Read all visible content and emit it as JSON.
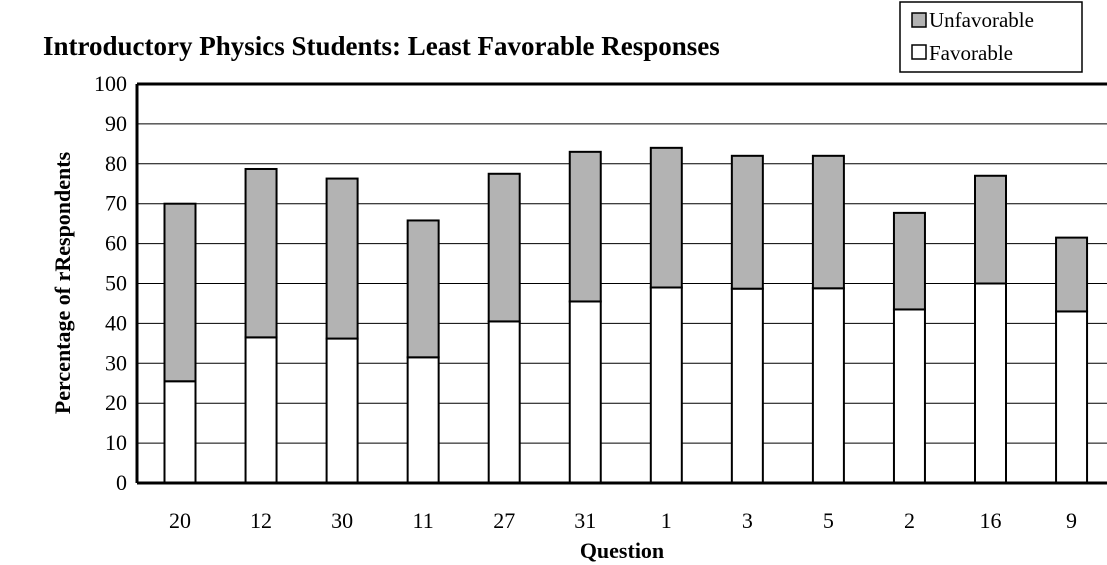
{
  "chart_data": {
    "type": "bar",
    "stacked": true,
    "title": "Introductory Physics Students: Least Favorable Responses",
    "xlabel": "Question",
    "ylabel": "Percentage of rRespondents",
    "ylim": [
      0,
      100
    ],
    "ytick_step": 10,
    "grid": true,
    "legend_position": "top-right",
    "categories": [
      "20",
      "12",
      "30",
      "11",
      "27",
      "31",
      "1",
      "3",
      "5",
      "2",
      "16",
      "9"
    ],
    "series": [
      {
        "name": "Favorable",
        "color": "#ffffff",
        "values": [
          25.5,
          36.5,
          36.2,
          31.5,
          40.5,
          45.5,
          49.0,
          48.7,
          48.8,
          43.5,
          50.0,
          43.0
        ]
      },
      {
        "name": "Unfavorable",
        "color": "#b3b3b3",
        "values": [
          44.5,
          42.2,
          40.1,
          34.3,
          37.0,
          37.5,
          35.0,
          33.3,
          33.2,
          24.2,
          27.0,
          18.5
        ]
      }
    ]
  }
}
